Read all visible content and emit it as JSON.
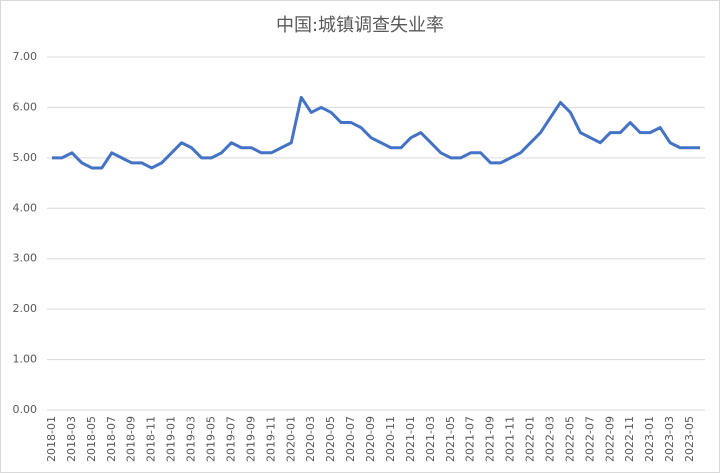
{
  "chart_data": {
    "type": "line",
    "title": "中国:城镇调查失业率",
    "categories": [
      "2018-01",
      null,
      "2018-03",
      null,
      "2018-05",
      null,
      "2018-07",
      null,
      "2018-09",
      null,
      "2018-11",
      null,
      "2019-01",
      null,
      "2019-03",
      null,
      "2019-05",
      null,
      "2019-07",
      null,
      "2019-09",
      null,
      "2019-11",
      null,
      "2020-01",
      null,
      "2020-03",
      null,
      "2020-05",
      null,
      "2020-07",
      null,
      "2020-09",
      null,
      "2020-11",
      null,
      "2021-01",
      null,
      "2021-03",
      null,
      "2021-05",
      null,
      "2021-07",
      null,
      "2021-09",
      null,
      "2021-11",
      null,
      "2022-01",
      null,
      "2022-03",
      null,
      "2022-05",
      null,
      "2022-07",
      null,
      "2022-09",
      null,
      "2022-11",
      null,
      "2023-01",
      null,
      "2023-03",
      null,
      "2023-05",
      null
    ],
    "values": [
      5.0,
      5.0,
      5.1,
      4.9,
      4.8,
      4.8,
      5.1,
      5.0,
      4.9,
      4.9,
      4.8,
      4.9,
      5.1,
      5.3,
      5.2,
      5.0,
      5.0,
      5.1,
      5.3,
      5.2,
      5.2,
      5.1,
      5.1,
      5.2,
      5.3,
      6.2,
      5.9,
      6.0,
      5.9,
      5.7,
      5.7,
      5.6,
      5.4,
      5.3,
      5.2,
      5.2,
      5.4,
      5.5,
      5.3,
      5.1,
      5.0,
      5.0,
      5.1,
      5.1,
      4.9,
      4.9,
      5.0,
      5.1,
      5.3,
      5.5,
      5.8,
      6.1,
      5.9,
      5.5,
      5.4,
      5.3,
      5.5,
      5.5,
      5.7,
      5.5,
      5.5,
      5.6,
      5.3,
      5.2,
      5.2,
      5.2
    ],
    "color": "#4472c4",
    "ylim": [
      0,
      7
    ],
    "yticks": [
      {
        "value": 0,
        "label": "0.00"
      },
      {
        "value": 1,
        "label": "1.00"
      },
      {
        "value": 2,
        "label": "2.00"
      },
      {
        "value": 3,
        "label": "3.00"
      },
      {
        "value": 4,
        "label": "4.00"
      },
      {
        "value": 5,
        "label": "5.00"
      },
      {
        "value": 6,
        "label": "6.00"
      },
      {
        "value": 7,
        "label": "7.00"
      }
    ],
    "grid": true
  }
}
